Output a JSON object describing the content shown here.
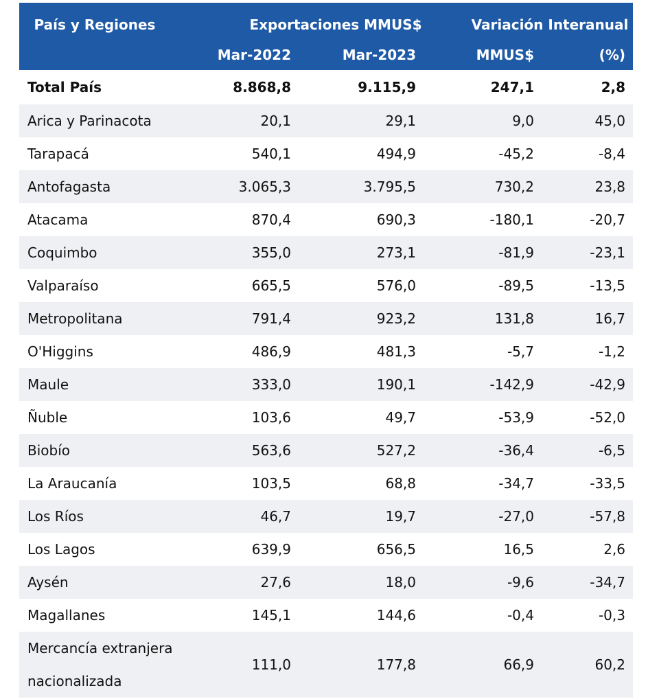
{
  "header": {
    "col_region": "País y Regiones",
    "group_exports": "Exportaciones MMUS$",
    "group_variation": "Variación Interanual",
    "sub_mar2022": "Mar-2022",
    "sub_mar2023": "Mar-2023",
    "sub_mmus": "MMUS$",
    "sub_pct": "(%)"
  },
  "rows": [
    {
      "name": "Total País",
      "v1": "8.868,8",
      "v2": "9.115,9",
      "v3": "247,1",
      "v4": "2,8"
    },
    {
      "name": "Arica y Parinacota",
      "v1": "20,1",
      "v2": "29,1",
      "v3": "9,0",
      "v4": "45,0"
    },
    {
      "name": "Tarapacá",
      "v1": "540,1",
      "v2": "494,9",
      "v3": "-45,2",
      "v4": "-8,4"
    },
    {
      "name": "Antofagasta",
      "v1": "3.065,3",
      "v2": "3.795,5",
      "v3": "730,2",
      "v4": "23,8"
    },
    {
      "name": "Atacama",
      "v1": "870,4",
      "v2": "690,3",
      "v3": "-180,1",
      "v4": "-20,7"
    },
    {
      "name": "Coquimbo",
      "v1": "355,0",
      "v2": "273,1",
      "v3": "-81,9",
      "v4": "-23,1"
    },
    {
      "name": "Valparaíso",
      "v1": "665,5",
      "v2": "576,0",
      "v3": "-89,5",
      "v4": "-13,5"
    },
    {
      "name": "Metropolitana",
      "v1": "791,4",
      "v2": "923,2",
      "v3": "131,8",
      "v4": "16,7"
    },
    {
      "name": "O'Higgins",
      "v1": "486,9",
      "v2": "481,3",
      "v3": "-5,7",
      "v4": "-1,2"
    },
    {
      "name": "Maule",
      "v1": "333,0",
      "v2": "190,1",
      "v3": "-142,9",
      "v4": "-42,9"
    },
    {
      "name": "Ñuble",
      "v1": "103,6",
      "v2": "49,7",
      "v3": "-53,9",
      "v4": "-52,0"
    },
    {
      "name": "Biobío",
      "v1": "563,6",
      "v2": "527,2",
      "v3": "-36,4",
      "v4": "-6,5"
    },
    {
      "name": "La Araucanía",
      "v1": "103,5",
      "v2": "68,8",
      "v3": "-34,7",
      "v4": "-33,5"
    },
    {
      "name": "Los Ríos",
      "v1": "46,7",
      "v2": "19,7",
      "v3": "-27,0",
      "v4": "-57,8"
    },
    {
      "name": "Los Lagos",
      "v1": "639,9",
      "v2": "656,5",
      "v3": "16,5",
      "v4": "2,6"
    },
    {
      "name": "Aysén",
      "v1": "27,6",
      "v2": "18,0",
      "v3": "-9,6",
      "v4": "-34,7"
    },
    {
      "name": "Magallanes",
      "v1": "145,1",
      "v2": "144,6",
      "v3": "-0,4",
      "v4": "-0,3"
    },
    {
      "name": "Mercancía extranjera",
      "name2": "nacionalizada",
      "v1": "111,0",
      "v2": "177,8",
      "v3": "66,9",
      "v4": "60,2"
    }
  ]
}
